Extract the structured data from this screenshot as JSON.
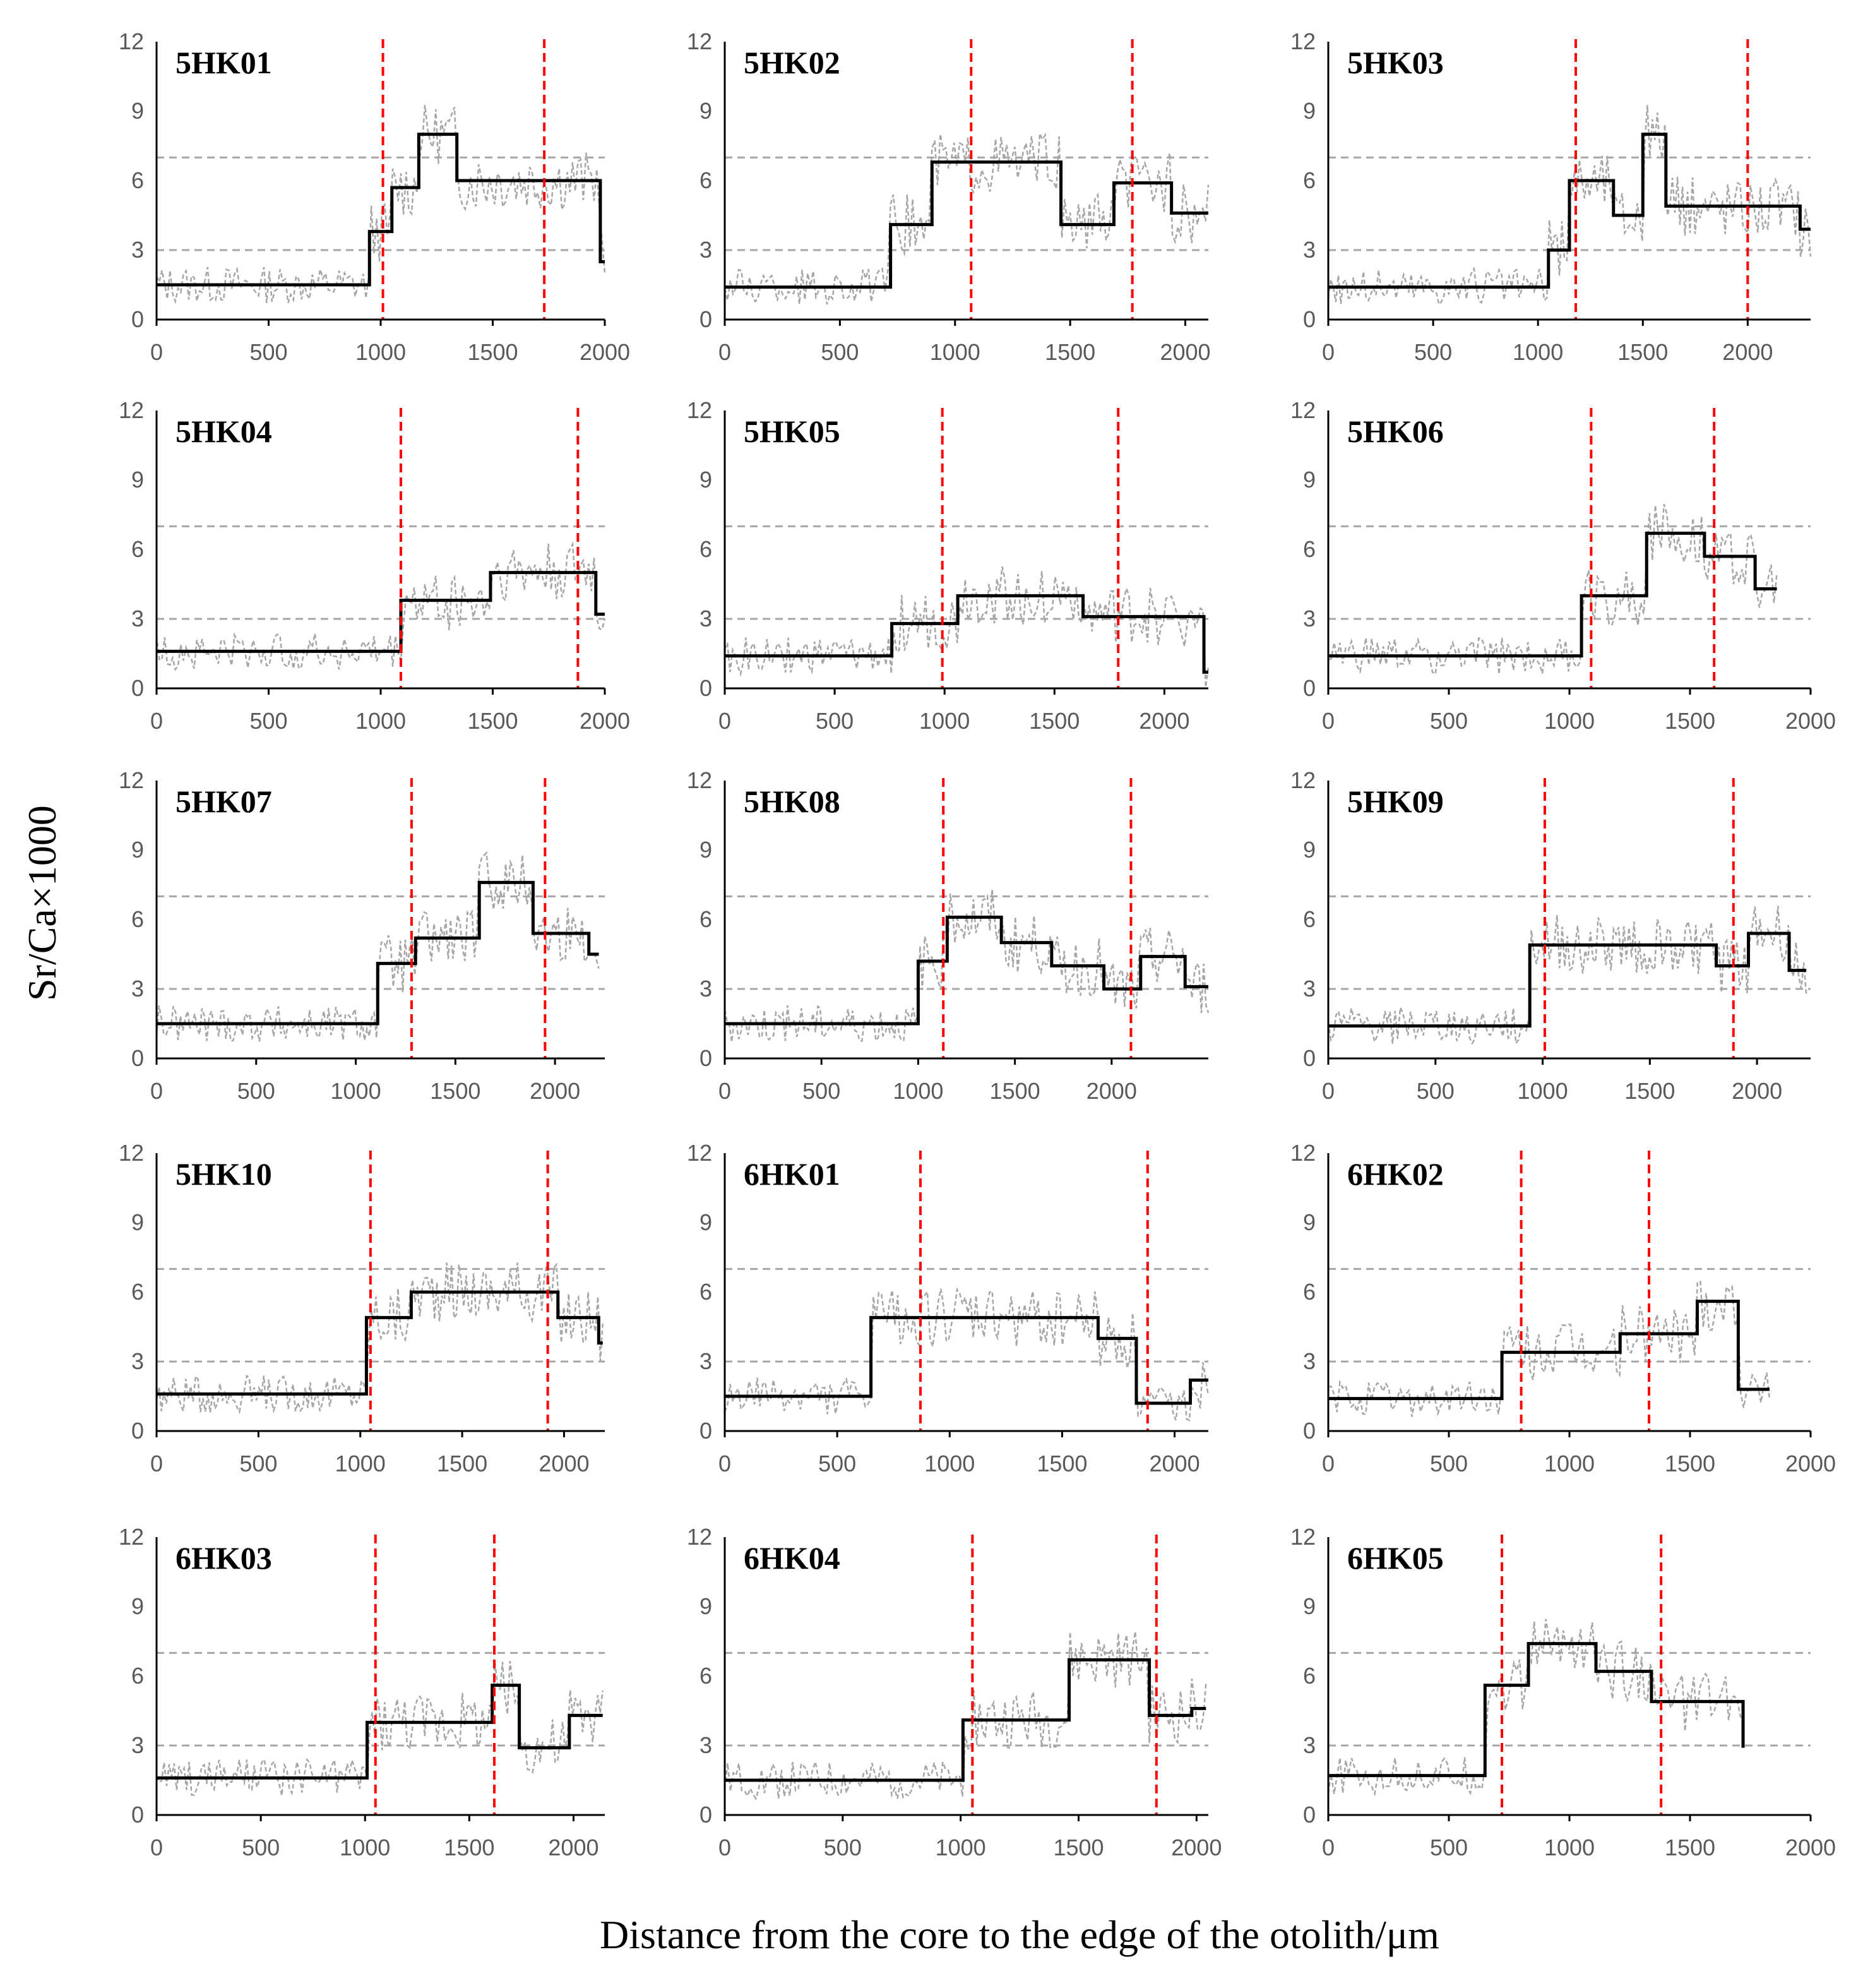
{
  "chart_data": {
    "type": "line",
    "xlabel": "Distance from the core to the edge of the otolith/μm",
    "ylabel": "Sr/Ca×1000",
    "ylim": [
      0,
      12
    ],
    "yticks": [
      0,
      3,
      6,
      9,
      12
    ],
    "reference_lines_y": [
      3,
      7
    ],
    "grid": false,
    "colors": {
      "step": "#000000",
      "raw": "#a6a6a6",
      "boundary": "#ff0000",
      "reference": "#a6a6a6"
    },
    "panels": [
      {
        "title": "5HK01",
        "xmax": 2000,
        "xticks": [
          0,
          500,
          1000,
          1500,
          2000
        ],
        "boundaries": [
          1010,
          1730
        ],
        "steps": [
          [
            0,
            1.5
          ],
          [
            950,
            3.8
          ],
          [
            1050,
            5.7
          ],
          [
            1170,
            8.0
          ],
          [
            1340,
            6.0
          ],
          [
            1980,
            2.5
          ],
          [
            2000,
            2.5
          ]
        ]
      },
      {
        "title": "5HK02",
        "xmax": 2100,
        "xticks": [
          0,
          500,
          1000,
          1500,
          2000
        ],
        "boundaries": [
          1070,
          1770
        ],
        "steps": [
          [
            0,
            1.4
          ],
          [
            720,
            4.1
          ],
          [
            900,
            6.8
          ],
          [
            1460,
            4.1
          ],
          [
            1690,
            5.9
          ],
          [
            1940,
            4.6
          ],
          [
            2100,
            4.6
          ]
        ]
      },
      {
        "title": "5HK03",
        "xmax": 2300,
        "xticks": [
          0,
          500,
          1000,
          1500,
          2000
        ],
        "boundaries": [
          1180,
          2000
        ],
        "steps": [
          [
            0,
            1.4
          ],
          [
            1050,
            3.0
          ],
          [
            1150,
            6.0
          ],
          [
            1360,
            4.5
          ],
          [
            1500,
            8.0
          ],
          [
            1610,
            4.9
          ],
          [
            2250,
            3.9
          ],
          [
            2300,
            3.9
          ]
        ]
      },
      {
        "title": "5HK04",
        "xmax": 2000,
        "xticks": [
          0,
          500,
          1000,
          1500,
          2000
        ],
        "boundaries": [
          1090,
          1880
        ],
        "steps": [
          [
            0,
            1.6
          ],
          [
            1090,
            3.8
          ],
          [
            1490,
            5.0
          ],
          [
            1960,
            3.2
          ],
          [
            2000,
            3.2
          ]
        ]
      },
      {
        "title": "5HK05",
        "xmax": 2200,
        "xticks": [
          0,
          500,
          1000,
          1500,
          2000
        ],
        "boundaries": [
          990,
          1790
        ],
        "steps": [
          [
            0,
            1.4
          ],
          [
            760,
            2.8
          ],
          [
            1060,
            4.0
          ],
          [
            1630,
            3.1
          ],
          [
            2180,
            0.7
          ],
          [
            2200,
            0.7
          ]
        ]
      },
      {
        "title": "5HK06",
        "xmax": 2000,
        "xticks": [
          0,
          500,
          1000,
          1500,
          2000
        ],
        "boundaries": [
          1090,
          1600
        ],
        "steps": [
          [
            0,
            1.4
          ],
          [
            1050,
            4.0
          ],
          [
            1320,
            6.7
          ],
          [
            1560,
            5.7
          ],
          [
            1770,
            4.3
          ],
          [
            1860,
            4.3
          ]
        ]
      },
      {
        "title": "5HK07",
        "xmax": 2250,
        "xticks": [
          0,
          500,
          1000,
          1500,
          2000
        ],
        "boundaries": [
          1280,
          1950
        ],
        "steps": [
          [
            0,
            1.5
          ],
          [
            1110,
            4.1
          ],
          [
            1300,
            5.2
          ],
          [
            1620,
            7.6
          ],
          [
            1890,
            5.4
          ],
          [
            2170,
            4.5
          ],
          [
            2220,
            4.5
          ]
        ]
      },
      {
        "title": "5HK08",
        "xmax": 2500,
        "xticks": [
          0,
          500,
          1000,
          1500,
          2000
        ],
        "boundaries": [
          1130,
          2100
        ],
        "steps": [
          [
            0,
            1.5
          ],
          [
            1000,
            4.2
          ],
          [
            1150,
            6.1
          ],
          [
            1430,
            5.0
          ],
          [
            1690,
            4.0
          ],
          [
            1960,
            3.0
          ],
          [
            2150,
            4.4
          ],
          [
            2380,
            3.1
          ],
          [
            2500,
            3.1
          ]
        ]
      },
      {
        "title": "5HK09",
        "xmax": 2250,
        "xticks": [
          0,
          500,
          1000,
          1500,
          2000
        ],
        "boundaries": [
          1010,
          1890
        ],
        "steps": [
          [
            0,
            1.4
          ],
          [
            940,
            4.9
          ],
          [
            1810,
            4.0
          ],
          [
            1960,
            5.4
          ],
          [
            2150,
            3.8
          ],
          [
            2230,
            3.8
          ]
        ]
      },
      {
        "title": "5HK10",
        "xmax": 2200,
        "xticks": [
          0,
          500,
          1000,
          1500,
          2000
        ],
        "boundaries": [
          1050,
          1920
        ],
        "steps": [
          [
            0,
            1.6
          ],
          [
            1030,
            4.9
          ],
          [
            1250,
            6.0
          ],
          [
            1970,
            4.9
          ],
          [
            2170,
            3.8
          ],
          [
            2190,
            3.8
          ]
        ]
      },
      {
        "title": "6HK01",
        "xmax": 2150,
        "xticks": [
          0,
          500,
          1000,
          1500,
          2000
        ],
        "boundaries": [
          870,
          1880
        ],
        "steps": [
          [
            0,
            1.5
          ],
          [
            650,
            4.9
          ],
          [
            1660,
            4.0
          ],
          [
            1830,
            1.2
          ],
          [
            2070,
            2.2
          ],
          [
            2150,
            2.2
          ]
        ]
      },
      {
        "title": "6HK02",
        "xmax": 2000,
        "xticks": [
          0,
          500,
          1000,
          1500,
          2000
        ],
        "boundaries": [
          800,
          1330
        ],
        "steps": [
          [
            0,
            1.4
          ],
          [
            720,
            3.4
          ],
          [
            1210,
            4.2
          ],
          [
            1530,
            5.6
          ],
          [
            1700,
            1.8
          ],
          [
            1830,
            1.8
          ]
        ]
      },
      {
        "title": "6HK03",
        "xmax": 2150,
        "xticks": [
          0,
          500,
          1000,
          1500,
          2000
        ],
        "boundaries": [
          1050,
          1620
        ],
        "steps": [
          [
            0,
            1.6
          ],
          [
            1010,
            4.0
          ],
          [
            1610,
            5.6
          ],
          [
            1740,
            2.9
          ],
          [
            1980,
            4.3
          ],
          [
            2140,
            4.3
          ]
        ]
      },
      {
        "title": "6HK04",
        "xmax": 2050,
        "xticks": [
          0,
          500,
          1000,
          1500,
          2000
        ],
        "boundaries": [
          1050,
          1830
        ],
        "steps": [
          [
            0,
            1.5
          ],
          [
            1010,
            4.1
          ],
          [
            1460,
            6.7
          ],
          [
            1800,
            4.3
          ],
          [
            1980,
            4.6
          ],
          [
            2040,
            4.6
          ]
        ]
      },
      {
        "title": "6HK05",
        "xmax": 2000,
        "xticks": [
          0,
          500,
          1000,
          1500,
          2000
        ],
        "boundaries": [
          720,
          1380
        ],
        "steps": [
          [
            0,
            1.7
          ],
          [
            650,
            5.6
          ],
          [
            830,
            7.4
          ],
          [
            1110,
            6.2
          ],
          [
            1340,
            4.9
          ],
          [
            1720,
            2.9
          ],
          [
            1720,
            2.9
          ]
        ]
      }
    ]
  }
}
